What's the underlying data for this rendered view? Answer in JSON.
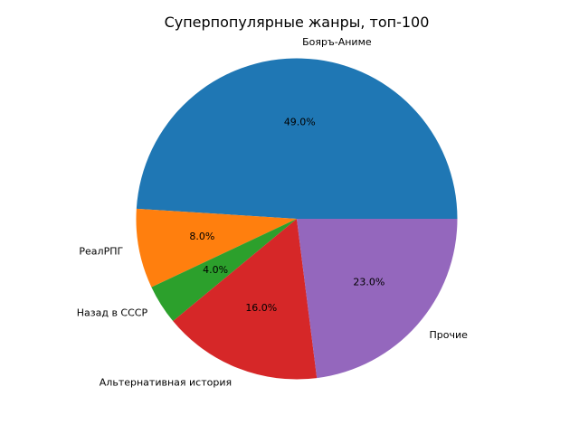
{
  "chart_data": {
    "type": "pie",
    "title": "Суперпопулярные жанры, топ-100",
    "categories": [
      "Бояръ-Аниме",
      "РеалРПГ",
      "Назад в СССР",
      "Альтернативная история",
      "Прочие"
    ],
    "values": [
      49,
      8,
      4,
      16,
      23
    ],
    "percent_labels": [
      "49.0%",
      "8.0%",
      "4.0%",
      "16.0%",
      "23.0%"
    ],
    "colors": [
      "#1f77b4",
      "#ff7f0e",
      "#2ca02c",
      "#d62728",
      "#9467bd"
    ],
    "start_angle_deg": 0,
    "direction": "counterclockwise",
    "legend": "none"
  }
}
